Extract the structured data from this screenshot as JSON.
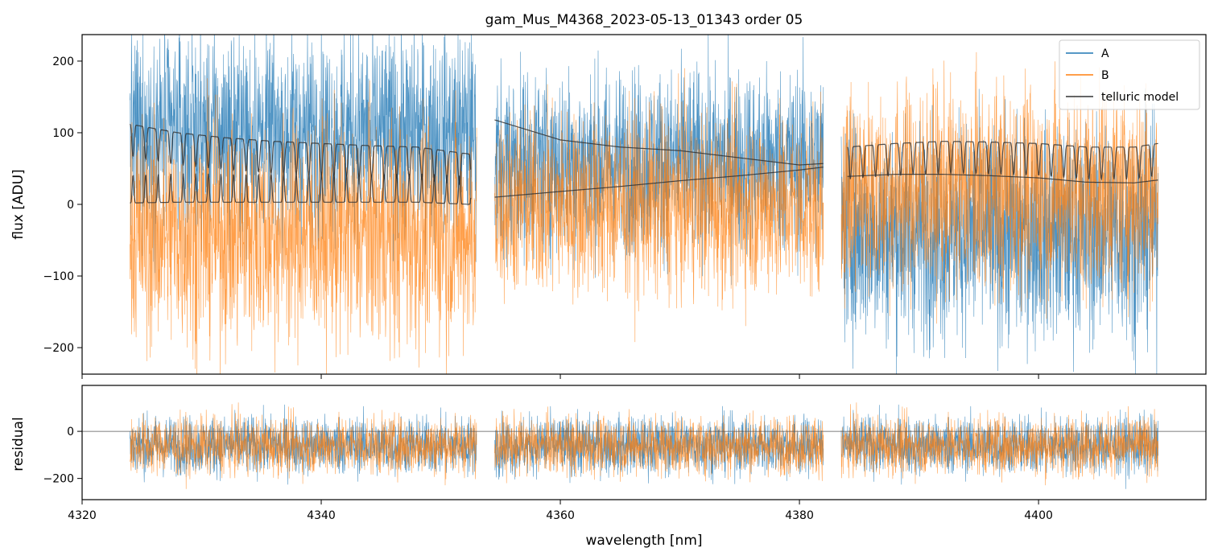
{
  "chart_data": [
    {
      "type": "line",
      "panel": "main",
      "title": "gam_Mus_M4368_2023-05-13_01343  order 05",
      "xlabel": "",
      "ylabel": "flux [ADU]",
      "xlim": [
        4320,
        4414
      ],
      "ylim": [
        -237,
        237
      ],
      "yticks": [
        -200,
        -100,
        0,
        100,
        200
      ],
      "ytick_labels": [
        "−200",
        "−100",
        "0",
        "100",
        "200"
      ],
      "xticks": [
        4320,
        4340,
        4360,
        4380,
        4400
      ],
      "legend_position": "top-right",
      "legend": [
        "A",
        "B",
        "telluric model"
      ],
      "segments": [
        [
          4324,
          4353
        ],
        [
          4354.5,
          4382
        ],
        [
          4383.5,
          4410
        ]
      ],
      "series": [
        {
          "name": "A",
          "color": "#1f77b4",
          "description": "noisy spectrum",
          "baseline_by_segment": [
            100,
            60,
            -40
          ],
          "amplitude_by_segment": [
            135,
            125,
            145
          ]
        },
        {
          "name": "B",
          "color": "#ff7f0e",
          "description": "noisy spectrum",
          "baseline_by_segment": [
            -40,
            0,
            20
          ],
          "amplitude_by_segment": [
            155,
            125,
            140
          ]
        },
        {
          "name": "telluric model",
          "color": "#333333",
          "curves": [
            {
              "x": [
                4324,
                4328,
                4332,
                4336,
                4340,
                4344,
                4348,
                4352.5
              ],
              "y": [
                112,
                100,
                93,
                88,
                85,
                82,
                80,
                70
              ],
              "dips": true,
              "dip_depth": 45
            },
            {
              "x": [
                4324,
                4328,
                4332,
                4336,
                4340,
                4344,
                4348,
                4352.5
              ],
              "y": [
                2,
                3,
                3,
                3,
                3,
                3,
                3,
                0
              ],
              "peaks": true,
              "peak_height": 40
            },
            {
              "x": [
                4354.5,
                4360,
                4365,
                4370,
                4375,
                4380,
                4382
              ],
              "y": [
                118,
                90,
                80,
                75,
                65,
                55,
                57
              ],
              "dips": false
            },
            {
              "x": [
                4354.5,
                4360,
                4365,
                4370,
                4375,
                4380,
                4382
              ],
              "y": [
                10,
                18,
                25,
                33,
                40,
                48,
                52
              ],
              "dips": false
            },
            {
              "x": [
                4384,
                4388,
                4392,
                4396,
                4400,
                4404,
                4408,
                4410
              ],
              "y": [
                80,
                85,
                88,
                87,
                85,
                80,
                80,
                85
              ],
              "dips": true,
              "dip_depth": 45
            },
            {
              "x": [
                4384,
                4388,
                4392,
                4396,
                4400,
                4404,
                4408,
                4410
              ],
              "y": [
                39,
                42,
                42,
                40,
                37,
                31,
                30,
                34
              ],
              "dips": false
            }
          ]
        }
      ]
    },
    {
      "type": "line",
      "panel": "residual",
      "xlabel": "wavelength [nm]",
      "ylabel": "residual",
      "xlim": [
        4320,
        4414
      ],
      "ylim": [
        -290,
        195
      ],
      "yticks": [
        -200,
        0
      ],
      "ytick_labels": [
        "−200",
        "0"
      ],
      "xticks": [
        4320,
        4340,
        4360,
        4380,
        4400
      ],
      "xtick_labels": [
        "4320",
        "4340",
        "4360",
        "4380",
        "4400"
      ],
      "zero_line": true,
      "series": [
        {
          "name": "A",
          "color": "#1f77b4",
          "baseline": -60,
          "amplitude": 120
        },
        {
          "name": "B",
          "color": "#ff7f0e",
          "baseline": -60,
          "amplitude": 120
        }
      ]
    }
  ]
}
